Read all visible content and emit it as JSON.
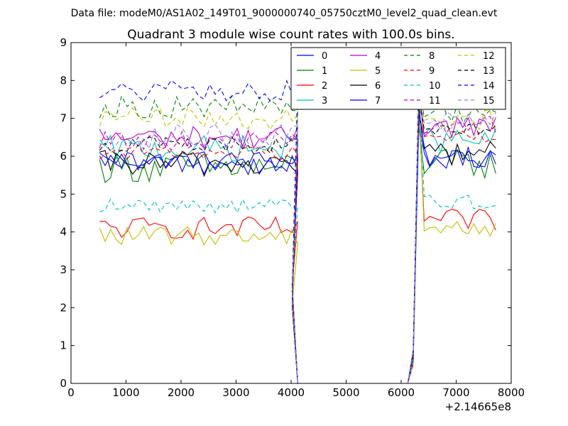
{
  "suptitle": "Data file: modeM0/AS1A02_149T01_9000000740_05750cztM0_level2_quad_clean.evt",
  "chart_data": {
    "type": "line",
    "title": "Quadrant 3 module wise count rates with 100.0s bins.",
    "xlabel": "",
    "ylabel": "",
    "offset_label": "+2.14665e8",
    "xlim": [
      0,
      8000
    ],
    "ylim": [
      0,
      9
    ],
    "xticks": [
      "0",
      "1000",
      "2000",
      "3000",
      "4000",
      "5000",
      "6000",
      "7000",
      "8000"
    ],
    "yticks": [
      "0",
      "1",
      "2",
      "3",
      "4",
      "5",
      "6",
      "7",
      "8",
      "9"
    ],
    "grid": false,
    "legend_position": "top-right",
    "x_segments": {
      "seg1": {
        "start": 520,
        "step": 100,
        "count": 37
      },
      "gap": [
        4220,
        4320,
        4420,
        4520,
        4620,
        4720,
        4820,
        4920,
        5020,
        5120,
        5220,
        5320,
        5420,
        5520,
        5620,
        5720,
        5820,
        5920,
        6020
      ],
      "transitions_down": [
        4020,
        4120
      ],
      "transitions_up": [
        6120,
        6220
      ],
      "seg2": {
        "start": 6320,
        "step": 100,
        "count": 15
      }
    },
    "series": [
      {
        "name": "0",
        "color": "#0000ff",
        "dash": false,
        "base1": 5.9,
        "amp": 0.25,
        "base2": 5.9,
        "low": 6.2
      },
      {
        "name": "1",
        "color": "#008000",
        "dash": false,
        "base1": 5.7,
        "amp": 0.4,
        "base2": 5.8,
        "low": 6.1
      },
      {
        "name": "2",
        "color": "#ff0000",
        "dash": false,
        "base1": 4.1,
        "amp": 0.3,
        "base2": 4.3,
        "low": 6.5
      },
      {
        "name": "3",
        "color": "#00bfbf",
        "dash": false,
        "base1": 6.2,
        "amp": 0.35,
        "base2": 6.4,
        "low": 6.0
      },
      {
        "name": "4",
        "color": "#bf00bf",
        "dash": false,
        "base1": 6.5,
        "amp": 0.3,
        "base2": 6.8,
        "low": 6.3
      },
      {
        "name": "5",
        "color": "#bfbf00",
        "dash": false,
        "base1": 3.9,
        "amp": 0.25,
        "base2": 4.1,
        "low": 6.6
      },
      {
        "name": "6",
        "color": "#000000",
        "dash": false,
        "base1": 5.8,
        "amp": 0.35,
        "base2": 6.1,
        "low": 6.4
      },
      {
        "name": "7",
        "color": "#0000ff",
        "dash": false,
        "base1": 5.8,
        "amp": 0.3,
        "base2": 6.0,
        "low": 6.2
      },
      {
        "name": "8",
        "color": "#008000",
        "dash": true,
        "base1": 7.3,
        "amp": 0.3,
        "base2": 7.2,
        "low": 6.9
      },
      {
        "name": "9",
        "color": "#ff0000",
        "dash": true,
        "base1": 6.1,
        "amp": 0.2,
        "base2": 6.5,
        "low": 6.8
      },
      {
        "name": "10",
        "color": "#00bfbf",
        "dash": true,
        "base1": 4.7,
        "amp": 0.2,
        "base2": 4.8,
        "low": 6.9
      },
      {
        "name": "11",
        "color": "#bf00bf",
        "dash": true,
        "base1": 6.4,
        "amp": 0.25,
        "base2": 6.8,
        "low": 6.5
      },
      {
        "name": "12",
        "color": "#bfbf00",
        "dash": true,
        "base1": 7.0,
        "amp": 0.3,
        "base2": 7.0,
        "low": 6.7
      },
      {
        "name": "13",
        "color": "#000000",
        "dash": true,
        "base1": 6.3,
        "amp": 0.25,
        "base2": 6.6,
        "low": 6.5
      },
      {
        "name": "14",
        "color": "#0000ff",
        "dash": true,
        "base1": 7.7,
        "amp": 0.3,
        "base2": 7.6,
        "low": 7.0
      },
      {
        "name": "15",
        "color": "#8080ff",
        "dash": true,
        "base1": 6.5,
        "amp": 0.35,
        "base2": 7.0,
        "low": 6.6
      }
    ]
  }
}
